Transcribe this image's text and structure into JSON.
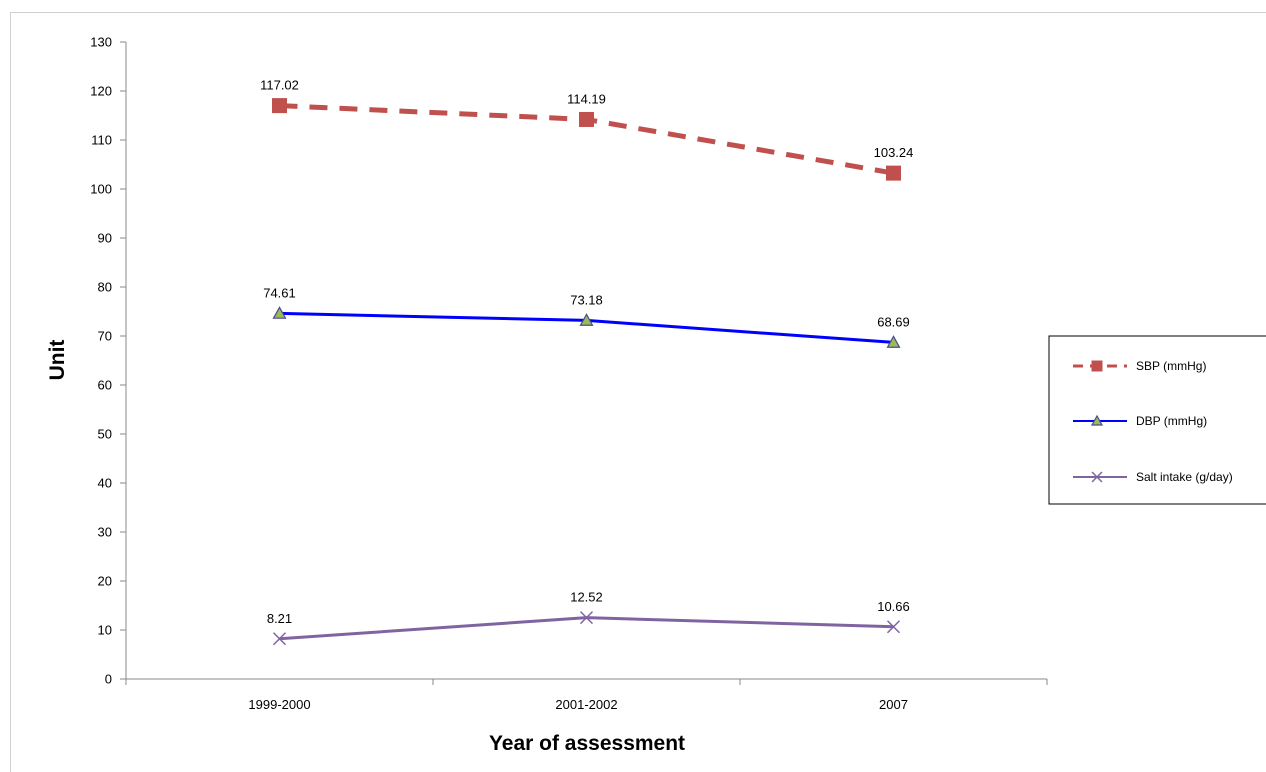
{
  "chart_data": {
    "type": "line",
    "categories": [
      "1999-2000",
      "2001-2002",
      "2007"
    ],
    "xlabel": "Year of assessment",
    "ylabel": "Unit",
    "ylim": [
      0,
      130
    ],
    "ytick_step": 10,
    "grid": false,
    "legend_position": "right",
    "series": [
      {
        "name": "SBP (mmHg)",
        "values": [
          117.02,
          114.19,
          103.24
        ],
        "labels": [
          "117.02",
          "114.19",
          "103.24"
        ],
        "color": "#c0504d",
        "style": "dashed",
        "marker": "square"
      },
      {
        "name": "DBP  (mmHg)",
        "values": [
          74.61,
          73.18,
          68.69
        ],
        "labels": [
          "74.61",
          "73.18",
          "68.69"
        ],
        "color": "#0000ff",
        "style": "solid",
        "marker": "triangle"
      },
      {
        "name": "Salt intake (g/day)",
        "values": [
          8.21,
          12.52,
          10.66
        ],
        "labels": [
          "8.21",
          "12.52",
          "10.66"
        ],
        "color": "#8064a2",
        "style": "solid",
        "marker": "x"
      }
    ]
  }
}
